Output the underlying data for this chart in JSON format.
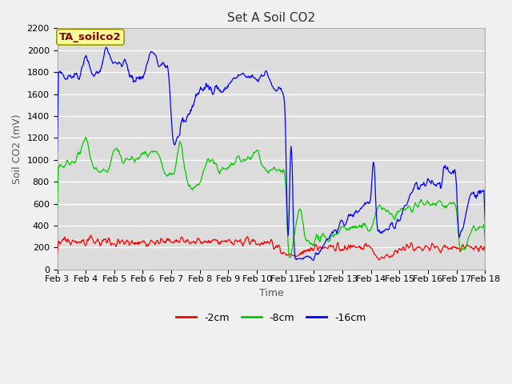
{
  "title": "Set A Soil CO2",
  "xlabel": "Time",
  "ylabel": "Soil CO2 (mV)",
  "ylim": [
    0,
    2200
  ],
  "annotation": "TA_soilco2",
  "annotation_color": "#8B0000",
  "annotation_bg": "#FFFF99",
  "annotation_border": "#999900",
  "line_colors": {
    "2cm": "#FF0000",
    "8cm": "#00CC00",
    "16cm": "#0000FF"
  },
  "legend_labels": [
    "-2cm",
    "-8cm",
    "-16cm"
  ],
  "plot_bg_color": "#DCDCDC",
  "fig_bg_color": "#F0F0F0",
  "grid_color": "#FFFFFF",
  "tick_dates": [
    "Feb 3",
    "Feb 4",
    "Feb 5",
    "Feb 6",
    "Feb 7",
    "Feb 8",
    "Feb 9",
    "Feb 10",
    "Feb 11",
    "Feb 12",
    "Feb 13",
    "Feb 14",
    "Feb 15",
    "Feb 16",
    "Feb 17",
    "Feb 18"
  ],
  "title_fontsize": 11,
  "axis_label_fontsize": 9,
  "tick_fontsize": 8
}
